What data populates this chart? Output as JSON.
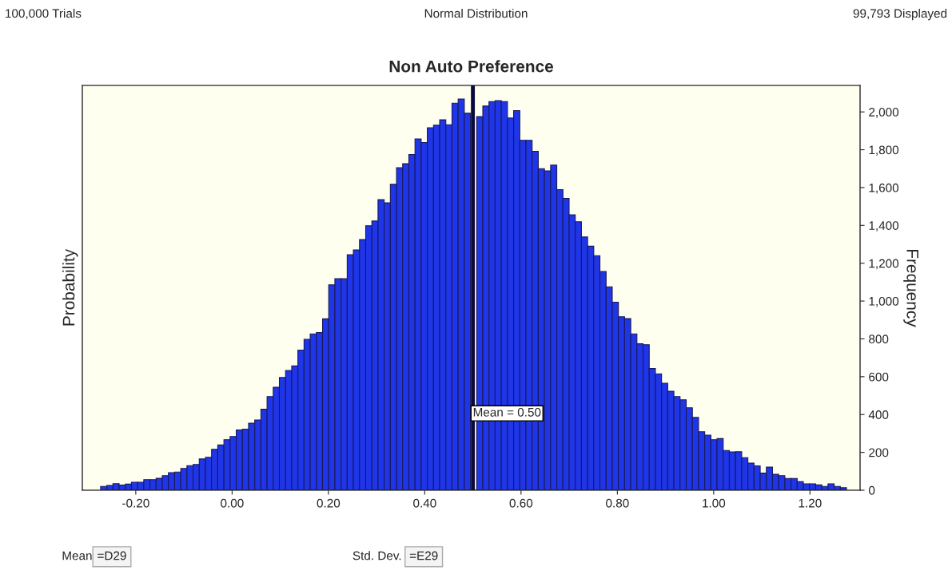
{
  "chart_data": {
    "type": "histogram",
    "title": "Non Auto Preference",
    "xlabel": null,
    "ylabel": "Probability",
    "y2label": "Frequency",
    "annotations": [
      "100,000 Trials",
      "Normal Distribution",
      "99,793 Displayed",
      "Mean",
      "=D29",
      "Std. Dev.",
      "=E29"
    ],
    "bins": [
      -0.273,
      -0.2602,
      -0.2474,
      -0.2346,
      -0.2218,
      -0.209,
      -0.1962,
      -0.1834,
      -0.1706,
      -0.1578,
      -0.145,
      -0.1322,
      -0.1194,
      -0.1066,
      -0.0938,
      -0.081,
      -0.0682,
      -0.0554,
      -0.0426,
      -0.0298,
      -0.017,
      -0.0042,
      0.0086,
      0.0214,
      0.0342,
      0.047,
      0.0598,
      0.0726,
      0.0854,
      0.0982,
      0.111,
      0.1238,
      0.1366,
      0.1494,
      0.1622,
      0.175,
      0.1878,
      0.2006,
      0.2134,
      0.2262,
      0.239,
      0.2518,
      0.2646,
      0.2774,
      0.2902,
      0.303,
      0.3158,
      0.3286,
      0.3414,
      0.3542,
      0.367,
      0.3798,
      0.3926,
      0.4054,
      0.4182,
      0.431,
      0.4438,
      0.4566,
      0.4694,
      0.4822,
      0.495,
      0.5078,
      0.5206,
      0.5334,
      0.5462,
      0.559,
      0.5718,
      0.5846,
      0.5974,
      0.6102,
      0.623,
      0.6358,
      0.6486,
      0.6614,
      0.6742,
      0.687,
      0.6998,
      0.7126,
      0.7254,
      0.7382,
      0.751,
      0.7638,
      0.7766,
      0.7894,
      0.8022,
      0.815,
      0.8278,
      0.8406,
      0.8534,
      0.8662,
      0.879,
      0.8918,
      0.9046,
      0.9174,
      0.9302,
      0.943,
      0.9558,
      0.9686,
      0.9814,
      0.9942,
      1.007,
      1.0198,
      1.0326,
      1.0454,
      1.0582,
      1.071,
      1.0838,
      1.0966,
      1.1094,
      1.1222,
      1.135,
      1.1478,
      1.1606,
      1.1734,
      1.1862,
      1.199,
      1.2118,
      1.2246,
      1.2374,
      1.2502,
      1.263,
      1.2758
    ],
    "series": [
      {
        "color": "#1f35e8",
        "axis": "y2",
        "values": [
          20,
          25,
          35,
          27,
          32,
          42,
          42,
          56,
          56,
          63,
          77,
          93,
          96,
          115,
          130,
          136,
          165,
          174,
          216,
          239,
          267,
          284,
          318,
          323,
          354,
          371,
          428,
          495,
          544,
          596,
          633,
          657,
          741,
          797,
          826,
          833,
          906,
          1086,
          1118,
          1118,
          1245,
          1270,
          1325,
          1398,
          1423,
          1536,
          1519,
          1617,
          1705,
          1726,
          1775,
          1857,
          1838,
          1916,
          1930,
          1958,
          1932,
          2046,
          2068,
          1993,
          null,
          1975,
          2031,
          2054,
          2060,
          2054,
          1968,
          2007,
          1850,
          1850,
          1792,
          1700,
          1688,
          1719,
          1589,
          1543,
          1456,
          1419,
          1339,
          1290,
          1240,
          1156,
          1075,
          994,
          917,
          907,
          826,
          774,
          769,
          643,
          615,
          565,
          523,
          495,
          478,
          436,
          385,
          309,
          291,
          267,
          273,
          210,
          202,
          203,
          172,
          143,
          129,
          90,
          122,
          84,
          77,
          62,
          62,
          45,
          34,
          34,
          28,
          20,
          34,
          20,
          13
        ]
      }
    ],
    "xlim": [
      -0.311,
      1.304
    ],
    "xticks": [
      {
        "value": -0.2,
        "label": "-0.20"
      },
      {
        "value": 0,
        "label": "0.00"
      },
      {
        "value": 0.2,
        "label": "0.20"
      },
      {
        "value": 0.4,
        "label": "0.40"
      },
      {
        "value": 0.6,
        "label": "0.60"
      },
      {
        "value": 0.8,
        "label": "0.80"
      },
      {
        "value": 1.0,
        "label": "1.00"
      },
      {
        "value": 1.2,
        "label": "1.20"
      }
    ],
    "y2lim": [
      0,
      2140
    ],
    "y2ticks": [
      0,
      200,
      400,
      600,
      800,
      {
        "value": 1000,
        "label": "1,000"
      },
      {
        "value": 1200,
        "label": "1,200"
      },
      {
        "value": 1400,
        "label": "1,400"
      },
      {
        "value": 1600,
        "label": "1,600"
      },
      {
        "value": 1800,
        "label": "1,800"
      },
      {
        "value": 2000,
        "label": "2,000"
      }
    ],
    "ref_lines": [
      {
        "axis": "x",
        "value": 0.5,
        "label": "Mean = 0.50",
        "color": "#0a0a3c"
      }
    ],
    "grid": false,
    "legend": false
  }
}
